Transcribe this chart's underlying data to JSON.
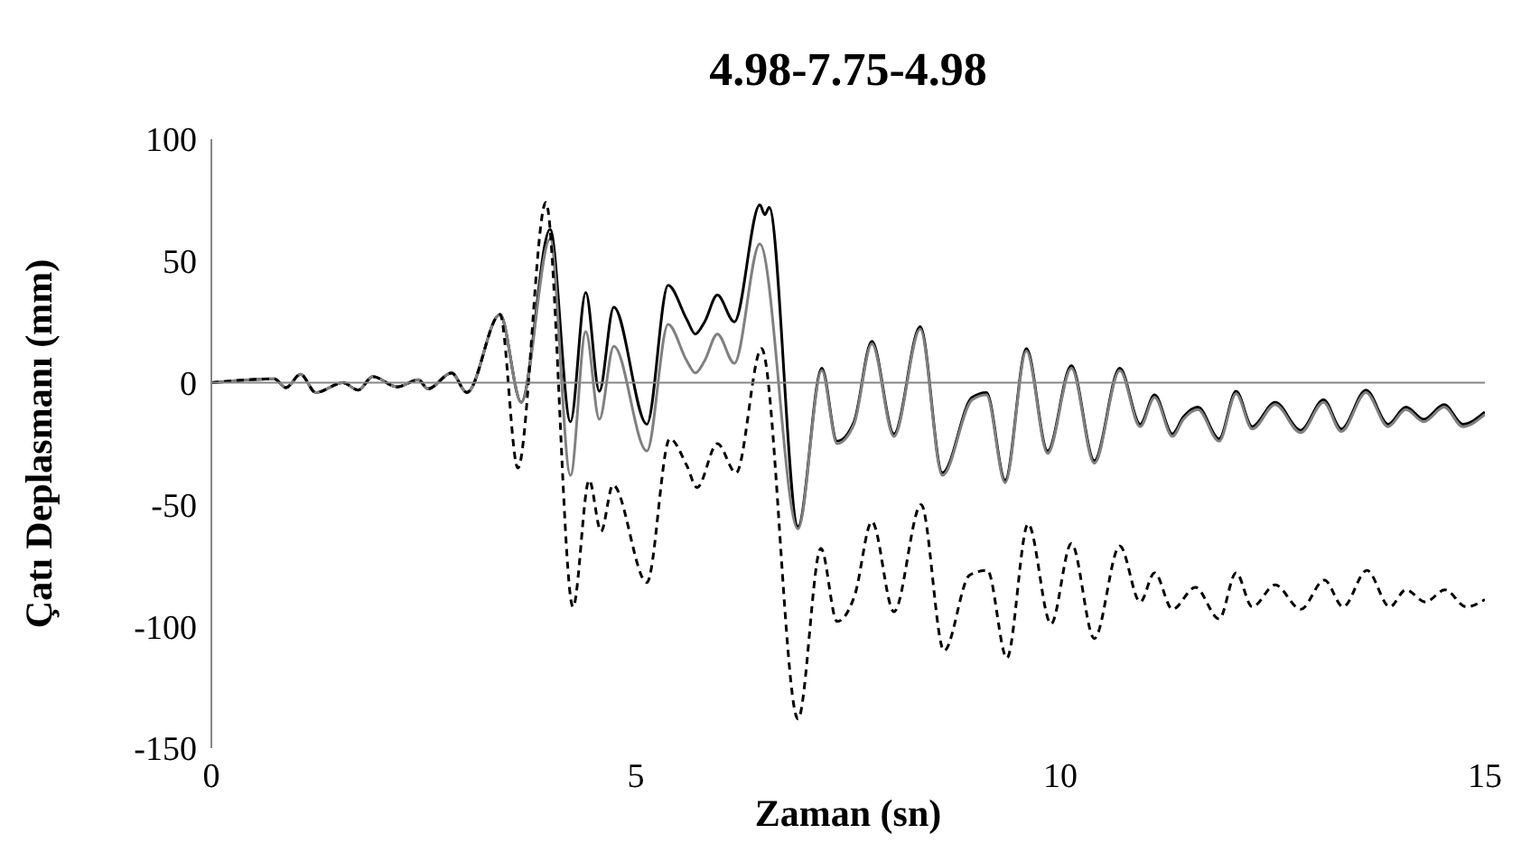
{
  "chart_data": {
    "type": "line",
    "title": "4.98-7.75-4.98",
    "xlabel": "Zaman (sn)",
    "ylabel": "Çatı Deplasmanı (mm)",
    "xlim": [
      0,
      15
    ],
    "xticks": [
      0,
      5,
      10,
      15
    ],
    "ylim": [
      -150,
      100
    ],
    "yticks": [
      -150,
      -100,
      -50,
      0,
      50,
      100
    ],
    "marker": "none",
    "series": [
      {
        "color": "#000000",
        "line_style": "solid",
        "x": [
          0,
          0.74,
          0.88,
          1.05,
          1.23,
          1.55,
          1.73,
          1.9,
          2.19,
          2.44,
          2.55,
          2.83,
          3.01,
          3.4,
          3.65,
          3.99,
          4.23,
          4.41,
          4.57,
          4.74,
          5.13,
          5.38,
          5.6,
          5.7,
          5.81,
          5.96,
          6.16,
          6.46,
          6.52,
          6.57,
          6.91,
          7.19,
          7.37,
          7.57,
          7.78,
          8.04,
          8.35,
          8.61,
          8.96,
          9.13,
          9.35,
          9.6,
          9.85,
          10.13,
          10.4,
          10.7,
          10.94,
          11.11,
          11.32,
          11.45,
          11.62,
          11.87,
          12.07,
          12.26,
          12.53,
          12.83,
          13.1,
          13.31,
          13.6,
          13.86,
          14.07,
          14.28,
          14.52,
          14.74,
          15
        ],
        "values": [
          0,
          1.6,
          -2,
          3.5,
          -4,
          0,
          -3,
          2.5,
          -1.7,
          1.2,
          -2.5,
          4,
          -4,
          28,
          -8,
          63,
          -16,
          37,
          -3.5,
          31,
          -17,
          40,
          26,
          20,
          25,
          36,
          25,
          73,
          69,
          72,
          -59,
          6,
          -24,
          -16,
          17,
          -21,
          23,
          -37,
          -6,
          -4,
          -40,
          14,
          -28,
          7,
          -32,
          6,
          -17,
          -5,
          -21,
          -14,
          -10,
          -23,
          -3.5,
          -18,
          -8,
          -19.5,
          -7,
          -19,
          -3,
          -17,
          -10,
          -15,
          -9,
          -17,
          -12
        ]
      },
      {
        "color": "#808080",
        "line_style": "solid",
        "x": [
          0,
          0.74,
          0.88,
          1.05,
          1.23,
          1.55,
          1.73,
          1.9,
          2.19,
          2.44,
          2.55,
          2.83,
          3.01,
          3.4,
          3.65,
          3.99,
          4.23,
          4.41,
          4.57,
          4.74,
          5.13,
          5.38,
          5.6,
          5.7,
          5.81,
          5.96,
          6.16,
          6.46,
          6.91,
          7.19,
          7.37,
          7.57,
          7.78,
          8.04,
          8.35,
          8.61,
          8.96,
          9.13,
          9.35,
          9.6,
          9.85,
          10.13,
          10.4,
          10.7,
          10.94,
          11.11,
          11.32,
          11.45,
          11.62,
          11.87,
          12.07,
          12.26,
          12.53,
          12.83,
          13.1,
          13.31,
          13.6,
          13.86,
          14.07,
          14.28,
          14.52,
          14.74,
          15
        ],
        "values": [
          0,
          1.6,
          -2,
          3.5,
          -4,
          0,
          -3,
          2.5,
          -1.7,
          1.2,
          -2.5,
          4,
          -4,
          28,
          -8,
          59,
          -38,
          21,
          -15,
          15,
          -28,
          24,
          9,
          4,
          9,
          20,
          8,
          57,
          -60,
          5,
          -25,
          -17,
          16,
          -22,
          22,
          -38,
          -7,
          -5,
          -41,
          13,
          -29,
          6,
          -33,
          5,
          -18,
          -6,
          -22,
          -15,
          -11,
          -24,
          -4.5,
          -19,
          -9,
          -20.5,
          -8,
          -20,
          -4,
          -18,
          -11,
          -16,
          -10,
          -18,
          -13
        ]
      },
      {
        "color": "#000000",
        "line_style": "dashed",
        "x": [
          0,
          0.74,
          0.88,
          1.05,
          1.23,
          1.55,
          1.73,
          1.9,
          2.19,
          2.44,
          2.55,
          2.83,
          3.01,
          3.4,
          3.61,
          3.94,
          4.26,
          4.45,
          4.59,
          4.73,
          5.13,
          5.4,
          5.6,
          5.72,
          5.96,
          6.18,
          6.48,
          6.91,
          7.18,
          7.37,
          7.58,
          7.78,
          8.04,
          8.36,
          8.63,
          8.93,
          9.14,
          9.37,
          9.62,
          9.89,
          10.13,
          10.4,
          10.7,
          10.94,
          11.11,
          11.32,
          11.59,
          11.87,
          12.07,
          12.26,
          12.53,
          12.83,
          13.11,
          13.33,
          13.61,
          13.88,
          14.07,
          14.3,
          14.53,
          14.78,
          15
        ],
        "values": [
          0,
          1.6,
          -2,
          3.5,
          -4,
          0,
          -3,
          2.5,
          -1.7,
          1.2,
          -2.5,
          4,
          -4,
          28,
          -35,
          74,
          -92,
          -40,
          -61,
          -42,
          -82,
          -23,
          -34,
          -43,
          -25,
          -37,
          14,
          -138,
          -68,
          -98,
          -87,
          -57,
          -94,
          -50,
          -110,
          -79,
          -77,
          -113,
          -58,
          -99,
          -66,
          -105,
          -67,
          -90,
          -78,
          -93,
          -84,
          -97,
          -78,
          -92,
          -83,
          -93,
          -81,
          -92,
          -77,
          -92,
          -85,
          -90,
          -85,
          -92,
          -89
        ]
      }
    ]
  }
}
